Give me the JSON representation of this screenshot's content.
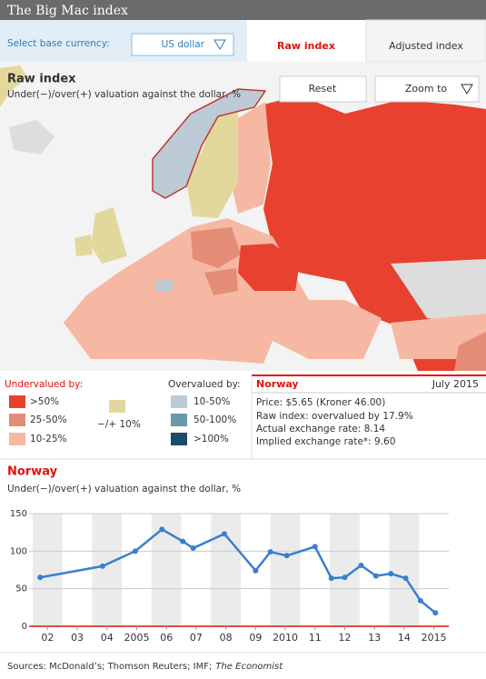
{
  "header": {
    "title": "The Big Mac index"
  },
  "controls": {
    "base_label": "Select base currency:",
    "base_value": "US dollar",
    "tabs": [
      "Raw index",
      "Adjusted index"
    ],
    "reset": "Reset",
    "zoom": "Zoom to"
  },
  "map": {
    "title": "Raw index",
    "subtitle": "Under(−)/over(+) valuation against the dollar, %"
  },
  "legend": {
    "under_title": "Undervalued by:",
    "over_title": "Overvalued by:",
    "under": [
      {
        "label": ">50%",
        "color": "#e8412f"
      },
      {
        "label": "25-50%",
        "color": "#e38d77"
      },
      {
        "label": "10-25%",
        "color": "#f6b8a3"
      }
    ],
    "neutral": {
      "label": "−/+ 10%",
      "color": "#e3d89c"
    },
    "over": [
      {
        "label": "10-50%",
        "color": "#bccbd6"
      },
      {
        "label": "50-100%",
        "color": "#6d97aa"
      },
      {
        "label": ">100%",
        "color": "#1c4c6b"
      }
    ]
  },
  "info": {
    "country": "Norway",
    "date": "July 2015",
    "lines": [
      "Price: $5.65 (Kroner 46.00)",
      "Raw index: overvalued by 17.9%",
      "Actual exchange rate: 8.14",
      "Implied exchange rate*: 9.60"
    ]
  },
  "chart_data": {
    "type": "line",
    "title": "Norway",
    "subtitle": "Under(−)/over(+) valuation against the dollar, %",
    "x": [
      2002.25,
      2004.35,
      2005.45,
      2006.35,
      2007.05,
      2007.4,
      2008.45,
      2009.5,
      2010.0,
      2010.55,
      2011.5,
      2012.05,
      2012.5,
      2013.05,
      2013.55,
      2014.05,
      2014.55,
      2015.05,
      2015.55
    ],
    "values": [
      65,
      80,
      100,
      129,
      113,
      104,
      123,
      74,
      99,
      94,
      106,
      64,
      65,
      81,
      67,
      70,
      64,
      34,
      17.9
    ],
    "color": "#3a7fcf",
    "zero_line_color": "#e3120b",
    "xlim": [
      2002,
      2016
    ],
    "xticks": [
      {
        "value": 2002.5,
        "label": "02"
      },
      {
        "value": 2003.5,
        "label": "03"
      },
      {
        "value": 2004.5,
        "label": "04"
      },
      {
        "value": 2005.5,
        "label": "2005"
      },
      {
        "value": 2006.5,
        "label": "06"
      },
      {
        "value": 2007.5,
        "label": "07"
      },
      {
        "value": 2008.5,
        "label": "08"
      },
      {
        "value": 2009.5,
        "label": "09"
      },
      {
        "value": 2010.5,
        "label": "2010"
      },
      {
        "value": 2011.5,
        "label": "11"
      },
      {
        "value": 2012.5,
        "label": "12"
      },
      {
        "value": 2013.5,
        "label": "13"
      },
      {
        "value": 2014.5,
        "label": "14"
      },
      {
        "value": 2015.5,
        "label": "2015"
      }
    ],
    "ylim": [
      0,
      150
    ],
    "yticks": [
      0,
      50,
      100,
      150
    ],
    "grid": true
  },
  "footer": {
    "sources": "Sources: McDonald’s; Thomson Reuters; IMF;",
    "sources_italic": "The Economist"
  }
}
